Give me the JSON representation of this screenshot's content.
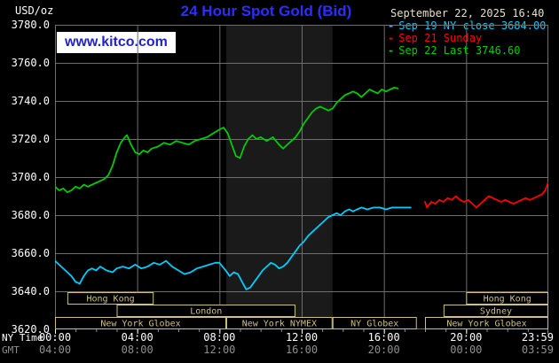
{
  "header": {
    "unit": "USD/oz",
    "title": "24 Hour Spot Gold (Bid)",
    "datetime": "September 22, 2025 16:40",
    "watermark": "www.kitco.com"
  },
  "legend": {
    "marker": "-"
  },
  "axes": {
    "ny_time_label": "NY Time",
    "gmt_label": "GMT"
  },
  "colors": {
    "background": "#000000",
    "title": "#2d2dff",
    "grid": "#6e6e6e",
    "axis_text": "#ffffff",
    "gmt_text": "#8f8f8f",
    "session_box": "#cfc080",
    "watermark_text": "#2222cc",
    "watermark_bg": "#ffffff",
    "date_text": "#e6e0c8",
    "shaded_band": "#1a1a1a"
  },
  "chart_data": {
    "type": "line",
    "title": "24 Hour Spot Gold (Bid)",
    "ylabel": "USD/oz",
    "ylim": [
      3620,
      3780
    ],
    "ytick_step": 20,
    "x_hours_range": [
      0,
      24
    ],
    "xtick_hours": [
      0,
      4,
      8,
      12,
      16,
      20,
      24
    ],
    "xticks_ny_time": [
      "00:00",
      "04:00",
      "08:00",
      "12:00",
      "16:00",
      "20:00",
      "23:59"
    ],
    "xticks_gmt": [
      "04:00",
      "08:00",
      "12:00",
      "16:00",
      "20:00",
      "00:00",
      "03:59"
    ],
    "shaded_region_hours": [
      8.33,
      13.5
    ],
    "series": [
      {
        "id": "sep19-ny-close",
        "name": "Sep 19 NY close 3684.00",
        "close_value": 3684.0,
        "color": "#00ccff",
        "points": [
          [
            0,
            3656
          ],
          [
            0.2,
            3654
          ],
          [
            0.5,
            3651
          ],
          [
            0.8,
            3648
          ],
          [
            1.0,
            3645
          ],
          [
            1.2,
            3644
          ],
          [
            1.4,
            3648
          ],
          [
            1.6,
            3651
          ],
          [
            1.8,
            3652
          ],
          [
            2.0,
            3651
          ],
          [
            2.2,
            3653
          ],
          [
            2.5,
            3651
          ],
          [
            2.8,
            3650
          ],
          [
            3.0,
            3652
          ],
          [
            3.3,
            3653
          ],
          [
            3.6,
            3652
          ],
          [
            3.9,
            3654
          ],
          [
            4.2,
            3652
          ],
          [
            4.5,
            3653
          ],
          [
            4.8,
            3655
          ],
          [
            5.1,
            3654
          ],
          [
            5.4,
            3656
          ],
          [
            5.7,
            3653
          ],
          [
            6.0,
            3651
          ],
          [
            6.3,
            3649
          ],
          [
            6.6,
            3650
          ],
          [
            6.9,
            3652
          ],
          [
            7.2,
            3653
          ],
          [
            7.5,
            3654
          ],
          [
            7.8,
            3655
          ],
          [
            8.0,
            3655
          ],
          [
            8.3,
            3651
          ],
          [
            8.5,
            3648
          ],
          [
            8.7,
            3650
          ],
          [
            8.9,
            3649
          ],
          [
            9.1,
            3645
          ],
          [
            9.3,
            3641
          ],
          [
            9.5,
            3642
          ],
          [
            9.7,
            3645
          ],
          [
            9.9,
            3648
          ],
          [
            10.1,
            3651
          ],
          [
            10.3,
            3653
          ],
          [
            10.5,
            3655
          ],
          [
            10.7,
            3654
          ],
          [
            10.9,
            3652
          ],
          [
            11.1,
            3653
          ],
          [
            11.3,
            3655
          ],
          [
            11.5,
            3658
          ],
          [
            11.7,
            3661
          ],
          [
            11.9,
            3664
          ],
          [
            12.1,
            3666
          ],
          [
            12.3,
            3669
          ],
          [
            12.5,
            3671
          ],
          [
            12.7,
            3673
          ],
          [
            12.9,
            3675
          ],
          [
            13.1,
            3677
          ],
          [
            13.3,
            3679
          ],
          [
            13.5,
            3680
          ],
          [
            13.7,
            3681
          ],
          [
            13.9,
            3680
          ],
          [
            14.1,
            3682
          ],
          [
            14.3,
            3683
          ],
          [
            14.5,
            3682
          ],
          [
            14.7,
            3683
          ],
          [
            14.9,
            3684
          ],
          [
            15.2,
            3683
          ],
          [
            15.5,
            3684
          ],
          [
            15.8,
            3684
          ],
          [
            16.1,
            3683
          ],
          [
            16.4,
            3684
          ],
          [
            16.7,
            3684
          ],
          [
            17.0,
            3684
          ],
          [
            17.3,
            3684
          ]
        ]
      },
      {
        "id": "sep21-sunday",
        "name": "Sep 21 Sunday",
        "color": "#ff0000",
        "points": [
          [
            18.0,
            3687
          ],
          [
            18.1,
            3684
          ],
          [
            18.3,
            3687
          ],
          [
            18.5,
            3686
          ],
          [
            18.7,
            3688
          ],
          [
            18.9,
            3687
          ],
          [
            19.1,
            3689
          ],
          [
            19.3,
            3688
          ],
          [
            19.5,
            3690
          ],
          [
            19.7,
            3688
          ],
          [
            19.9,
            3687
          ],
          [
            20.1,
            3688
          ],
          [
            20.3,
            3686
          ],
          [
            20.5,
            3684
          ],
          [
            20.7,
            3686
          ],
          [
            20.9,
            3688
          ],
          [
            21.1,
            3690
          ],
          [
            21.3,
            3689
          ],
          [
            21.5,
            3688
          ],
          [
            21.7,
            3687
          ],
          [
            21.9,
            3688
          ],
          [
            22.1,
            3687
          ],
          [
            22.3,
            3686
          ],
          [
            22.5,
            3687
          ],
          [
            22.7,
            3688
          ],
          [
            22.9,
            3689
          ],
          [
            23.1,
            3688
          ],
          [
            23.3,
            3689
          ],
          [
            23.5,
            3690
          ],
          [
            23.7,
            3691
          ],
          [
            23.85,
            3693
          ],
          [
            23.98,
            3697
          ]
        ]
      },
      {
        "id": "sep22-today",
        "name": "Sep 22 Last 3746.60",
        "last_value": 3746.6,
        "color": "#00cc00",
        "points": [
          [
            0,
            3695
          ],
          [
            0.2,
            3693
          ],
          [
            0.4,
            3694
          ],
          [
            0.6,
            3692
          ],
          [
            0.8,
            3693
          ],
          [
            1.0,
            3695
          ],
          [
            1.2,
            3694
          ],
          [
            1.4,
            3696
          ],
          [
            1.6,
            3695
          ],
          [
            1.8,
            3696
          ],
          [
            2.0,
            3697
          ],
          [
            2.2,
            3698
          ],
          [
            2.4,
            3699
          ],
          [
            2.6,
            3701
          ],
          [
            2.8,
            3706
          ],
          [
            3.0,
            3713
          ],
          [
            3.2,
            3718
          ],
          [
            3.4,
            3721
          ],
          [
            3.5,
            3722
          ],
          [
            3.7,
            3717
          ],
          [
            3.9,
            3713
          ],
          [
            4.1,
            3712
          ],
          [
            4.3,
            3714
          ],
          [
            4.5,
            3713
          ],
          [
            4.7,
            3715
          ],
          [
            5.0,
            3716
          ],
          [
            5.3,
            3718
          ],
          [
            5.6,
            3717
          ],
          [
            5.9,
            3719
          ],
          [
            6.2,
            3718
          ],
          [
            6.5,
            3717
          ],
          [
            6.8,
            3719
          ],
          [
            7.1,
            3720
          ],
          [
            7.4,
            3721
          ],
          [
            7.7,
            3723
          ],
          [
            8.0,
            3725
          ],
          [
            8.2,
            3726
          ],
          [
            8.4,
            3723
          ],
          [
            8.6,
            3717
          ],
          [
            8.8,
            3711
          ],
          [
            9.0,
            3710
          ],
          [
            9.2,
            3716
          ],
          [
            9.4,
            3720
          ],
          [
            9.6,
            3722
          ],
          [
            9.8,
            3720
          ],
          [
            10.0,
            3721
          ],
          [
            10.3,
            3719
          ],
          [
            10.6,
            3721
          ],
          [
            10.9,
            3717
          ],
          [
            11.1,
            3715
          ],
          [
            11.3,
            3717
          ],
          [
            11.5,
            3719
          ],
          [
            11.7,
            3721
          ],
          [
            11.9,
            3724
          ],
          [
            12.1,
            3728
          ],
          [
            12.3,
            3731
          ],
          [
            12.5,
            3734
          ],
          [
            12.7,
            3736
          ],
          [
            12.9,
            3737
          ],
          [
            13.1,
            3736
          ],
          [
            13.3,
            3735
          ],
          [
            13.5,
            3736
          ],
          [
            13.7,
            3739
          ],
          [
            13.9,
            3741
          ],
          [
            14.1,
            3743
          ],
          [
            14.3,
            3744
          ],
          [
            14.5,
            3745
          ],
          [
            14.7,
            3744
          ],
          [
            14.9,
            3742
          ],
          [
            15.1,
            3744
          ],
          [
            15.3,
            3746
          ],
          [
            15.5,
            3745
          ],
          [
            15.7,
            3744
          ],
          [
            15.9,
            3746
          ],
          [
            16.1,
            3745
          ],
          [
            16.3,
            3746
          ],
          [
            16.5,
            3747
          ],
          [
            16.67,
            3746.6
          ]
        ]
      }
    ],
    "sessions": [
      {
        "label": "Hong Kong",
        "row": 0,
        "start": 0.6,
        "end": 4.8
      },
      {
        "label": "Hong Kong",
        "row": 0,
        "start": 20.0,
        "end": 24.0
      },
      {
        "label": "London",
        "row": 1,
        "start": 3.0,
        "end": 11.7
      },
      {
        "label": "Sydney",
        "row": 1,
        "start": 18.9,
        "end": 24.0
      },
      {
        "label": "New York Globex",
        "row": 2,
        "start": 0.0,
        "end": 8.33
      },
      {
        "label": "New York NYMEX",
        "row": 2,
        "start": 8.33,
        "end": 13.5
      },
      {
        "label": "NY Globex",
        "row": 2,
        "start": 13.5,
        "end": 17.6
      },
      {
        "label": "New York Globex",
        "row": 2,
        "start": 18.0,
        "end": 24.0
      }
    ]
  }
}
